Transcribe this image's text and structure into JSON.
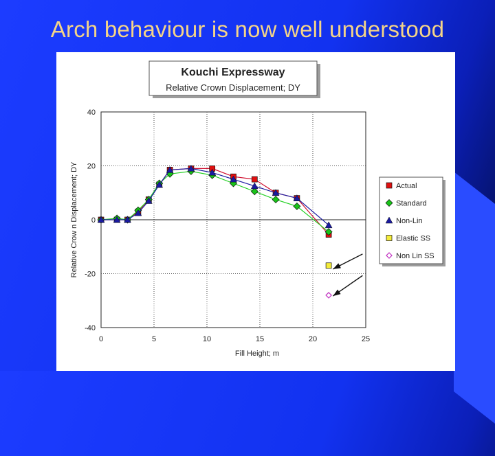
{
  "slide": {
    "title": "Arch behaviour is now well understood"
  },
  "chart_data": {
    "type": "line",
    "title": "Kouchi Expressway",
    "subtitle": "Relative Crown Displacement; DY",
    "xlabel": "Fill Height; m",
    "ylabel": "Relative Crow n Displacement; DY",
    "xlim": [
      0,
      25
    ],
    "ylim": [
      -40,
      40
    ],
    "x_ticks": [
      0,
      5,
      10,
      15,
      20,
      25
    ],
    "y_ticks": [
      40,
      20,
      0,
      -20,
      -40
    ],
    "grid": true,
    "legend_position": "right",
    "series": [
      {
        "name": "Actual",
        "marker": "square",
        "color": "#e01010",
        "line_color": "#d01030",
        "points": [
          [
            0,
            0
          ],
          [
            1.5,
            0
          ],
          [
            2.5,
            0
          ],
          [
            3.5,
            3
          ],
          [
            4.5,
            7.5
          ],
          [
            5.5,
            13
          ],
          [
            6.5,
            18.5
          ],
          [
            8.5,
            19
          ],
          [
            10.5,
            19
          ],
          [
            12.5,
            16
          ],
          [
            14.5,
            15
          ],
          [
            16.5,
            10
          ],
          [
            18.5,
            8
          ],
          [
            21.5,
            -5.5
          ]
        ]
      },
      {
        "name": "Standard",
        "marker": "diamond",
        "color": "#18c418",
        "line_color": "#22d022",
        "points": [
          [
            0,
            0
          ],
          [
            1.5,
            0.5
          ],
          [
            2.5,
            0
          ],
          [
            3.5,
            3.5
          ],
          [
            4.5,
            7.5
          ],
          [
            5.5,
            13.5
          ],
          [
            6.5,
            17
          ],
          [
            8.5,
            18
          ],
          [
            10.5,
            16.5
          ],
          [
            12.5,
            13.5
          ],
          [
            14.5,
            10.5
          ],
          [
            16.5,
            7.5
          ],
          [
            18.5,
            5
          ],
          [
            21.5,
            -4.5
          ]
        ]
      },
      {
        "name": "Non-Lin",
        "marker": "triangle",
        "color": "#1a1aa0",
        "line_color": "#1a1aa0",
        "points": [
          [
            0,
            0
          ],
          [
            1.5,
            0
          ],
          [
            2.5,
            0
          ],
          [
            3.5,
            2.5
          ],
          [
            4.5,
            7
          ],
          [
            5.5,
            13
          ],
          [
            6.5,
            18.5
          ],
          [
            8.5,
            19
          ],
          [
            10.5,
            17.5
          ],
          [
            12.5,
            15
          ],
          [
            14.5,
            12.5
          ],
          [
            16.5,
            10
          ],
          [
            18.5,
            8
          ],
          [
            21.5,
            -2
          ]
        ]
      },
      {
        "name": "Elastic SS",
        "marker": "square",
        "color": "#f4ec3a",
        "line_color": null,
        "points": [
          [
            21.5,
            -17
          ]
        ]
      },
      {
        "name": "Non Lin SS",
        "marker": "diamond-open",
        "color": "#c030c0",
        "line_color": null,
        "points": [
          [
            21.5,
            -28
          ]
        ]
      }
    ],
    "annotations": [
      {
        "type": "arrow",
        "from": [
          24.7,
          -12.7
        ],
        "to": [
          21.9,
          -18.3
        ]
      },
      {
        "type": "arrow",
        "from": [
          24.7,
          -20.7
        ],
        "to": [
          21.9,
          -28.3
        ]
      }
    ]
  }
}
